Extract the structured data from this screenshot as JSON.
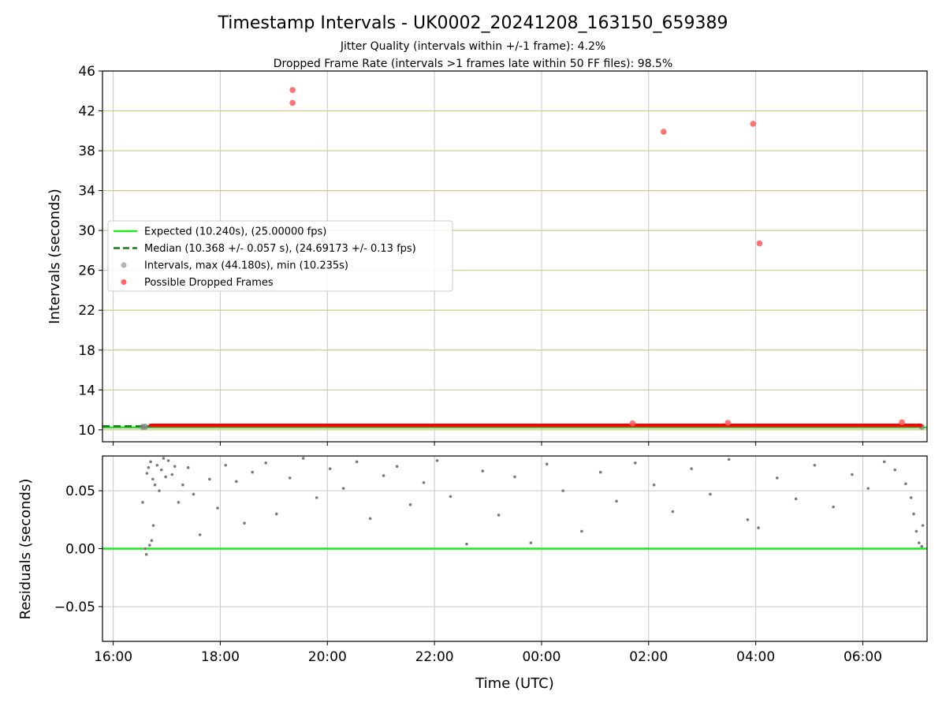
{
  "chart_data": [
    {
      "type": "scatter",
      "title": "Timestamp Intervals - UK0002_20241208_163150_659389",
      "subtitle_lines": [
        "Jitter Quality (intervals within +/-1 frame): 4.2%",
        "Dropped Frame Rate (intervals >1 frames late within 50 FF files): 98.5%"
      ],
      "ylabel": "Intervals (seconds)",
      "xlabel": "",
      "ylim": [
        8.8,
        46
      ],
      "yticks": [
        10,
        14,
        18,
        22,
        26,
        30,
        34,
        38,
        42,
        46
      ],
      "ytick_labels": [
        "10",
        "14",
        "18",
        "22",
        "26",
        "30",
        "34",
        "38",
        "42",
        "46"
      ],
      "ygrid_color": "#d4c48a",
      "legend_position": "center-left",
      "legend": [
        {
          "label": "Expected (10.240s), (25.00000 fps)",
          "color": "#22e822",
          "style": "solid-line"
        },
        {
          "label": "Median (10.368 +/- 0.057 s), (24.69173 +/- 0.13 fps)",
          "color": "#1a7a1a",
          "style": "dashed-line"
        },
        {
          "label": "Intervals, max (44.180s), min (10.235s)",
          "color": "#a0a0a0",
          "style": "marker"
        },
        {
          "label": "Possible Dropped Frames",
          "color": "#ff4040",
          "style": "marker"
        }
      ],
      "expected_value": 10.24,
      "median_value": 10.368,
      "dropped_band": {
        "x_range": [
          16.66,
          31.12
        ],
        "y_range": [
          10.27,
          10.62
        ],
        "color": "#ff0000"
      },
      "dropped_outliers": {
        "color": "#ff5a5a",
        "points": [
          {
            "x": 19.35,
            "y": 44.1
          },
          {
            "x": 19.35,
            "y": 42.8
          },
          {
            "x": 26.28,
            "y": 39.9
          },
          {
            "x": 27.95,
            "y": 40.7
          },
          {
            "x": 28.07,
            "y": 28.7
          },
          {
            "x": 25.7,
            "y": 10.65
          },
          {
            "x": 27.48,
            "y": 10.7
          },
          {
            "x": 30.73,
            "y": 10.75
          }
        ]
      },
      "intervals_points": {
        "color": "#808080",
        "points": [
          {
            "x": 16.55,
            "y": 10.3
          },
          {
            "x": 16.6,
            "y": 10.31
          },
          {
            "x": 31.1,
            "y": 10.3
          }
        ]
      }
    },
    {
      "type": "scatter",
      "title": "",
      "xlabel": "Time (UTC)",
      "ylabel": "Residuals (seconds)",
      "ylim": [
        -0.08,
        0.08
      ],
      "yticks": [
        -0.05,
        0.0,
        0.05
      ],
      "ytick_labels": [
        "−0.05",
        "0.00",
        "0.05"
      ],
      "xlim": [
        15.8,
        31.2
      ],
      "xticks": [
        16,
        18,
        20,
        22,
        24,
        26,
        28,
        30
      ],
      "xtick_labels": [
        "16:00",
        "18:00",
        "20:00",
        "22:00",
        "00:00",
        "02:00",
        "04:00",
        "06:00"
      ],
      "zero_line_color": "#22e822",
      "points_color": "#7a7a7a",
      "residual_points": [
        {
          "x": 16.55,
          "y": 0.04
        },
        {
          "x": 16.6,
          "y": 0.0
        },
        {
          "x": 16.62,
          "y": -0.005
        },
        {
          "x": 16.68,
          "y": 0.003
        },
        {
          "x": 16.72,
          "y": 0.007
        },
        {
          "x": 16.75,
          "y": 0.02
        },
        {
          "x": 16.63,
          "y": 0.065
        },
        {
          "x": 16.66,
          "y": 0.07
        },
        {
          "x": 16.7,
          "y": 0.075
        },
        {
          "x": 16.74,
          "y": 0.06
        },
        {
          "x": 16.78,
          "y": 0.055
        },
        {
          "x": 16.82,
          "y": 0.072
        },
        {
          "x": 16.86,
          "y": 0.05
        },
        {
          "x": 16.9,
          "y": 0.068
        },
        {
          "x": 16.94,
          "y": 0.078
        },
        {
          "x": 16.98,
          "y": 0.062
        },
        {
          "x": 17.03,
          "y": 0.076
        },
        {
          "x": 17.1,
          "y": 0.064
        },
        {
          "x": 17.15,
          "y": 0.071
        },
        {
          "x": 17.22,
          "y": 0.04
        },
        {
          "x": 17.3,
          "y": 0.055
        },
        {
          "x": 17.4,
          "y": 0.07
        },
        {
          "x": 17.5,
          "y": 0.047
        },
        {
          "x": 17.62,
          "y": 0.012
        },
        {
          "x": 17.8,
          "y": 0.06
        },
        {
          "x": 17.95,
          "y": 0.035
        },
        {
          "x": 18.1,
          "y": 0.072
        },
        {
          "x": 18.3,
          "y": 0.058
        },
        {
          "x": 18.45,
          "y": 0.022
        },
        {
          "x": 18.6,
          "y": 0.066
        },
        {
          "x": 18.85,
          "y": 0.074
        },
        {
          "x": 19.05,
          "y": 0.03
        },
        {
          "x": 19.3,
          "y": 0.061
        },
        {
          "x": 19.55,
          "y": 0.078
        },
        {
          "x": 19.8,
          "y": 0.044
        },
        {
          "x": 20.05,
          "y": 0.069
        },
        {
          "x": 20.3,
          "y": 0.052
        },
        {
          "x": 20.55,
          "y": 0.075
        },
        {
          "x": 20.8,
          "y": 0.026
        },
        {
          "x": 21.05,
          "y": 0.063
        },
        {
          "x": 21.3,
          "y": 0.071
        },
        {
          "x": 21.55,
          "y": 0.038
        },
        {
          "x": 21.8,
          "y": 0.057
        },
        {
          "x": 22.05,
          "y": 0.076
        },
        {
          "x": 22.3,
          "y": 0.045
        },
        {
          "x": 22.6,
          "y": 0.004
        },
        {
          "x": 22.9,
          "y": 0.067
        },
        {
          "x": 23.2,
          "y": 0.029
        },
        {
          "x": 23.5,
          "y": 0.062
        },
        {
          "x": 23.8,
          "y": 0.005
        },
        {
          "x": 24.1,
          "y": 0.073
        },
        {
          "x": 24.4,
          "y": 0.05
        },
        {
          "x": 24.75,
          "y": 0.015
        },
        {
          "x": 25.1,
          "y": 0.066
        },
        {
          "x": 25.4,
          "y": 0.041
        },
        {
          "x": 25.75,
          "y": 0.074
        },
        {
          "x": 26.1,
          "y": 0.055
        },
        {
          "x": 26.45,
          "y": 0.032
        },
        {
          "x": 26.8,
          "y": 0.069
        },
        {
          "x": 27.15,
          "y": 0.047
        },
        {
          "x": 27.5,
          "y": 0.077
        },
        {
          "x": 27.85,
          "y": 0.025
        },
        {
          "x": 28.05,
          "y": 0.018
        },
        {
          "x": 28.4,
          "y": 0.061
        },
        {
          "x": 28.75,
          "y": 0.043
        },
        {
          "x": 29.1,
          "y": 0.072
        },
        {
          "x": 29.45,
          "y": 0.036
        },
        {
          "x": 29.8,
          "y": 0.064
        },
        {
          "x": 30.1,
          "y": 0.052
        },
        {
          "x": 30.4,
          "y": 0.075
        },
        {
          "x": 30.6,
          "y": 0.068
        },
        {
          "x": 30.8,
          "y": 0.056
        },
        {
          "x": 30.9,
          "y": 0.044
        },
        {
          "x": 30.95,
          "y": 0.03
        },
        {
          "x": 31.0,
          "y": 0.015
        },
        {
          "x": 31.05,
          "y": 0.005
        },
        {
          "x": 31.1,
          "y": 0.002
        },
        {
          "x": 31.12,
          "y": 0.02
        }
      ]
    }
  ]
}
